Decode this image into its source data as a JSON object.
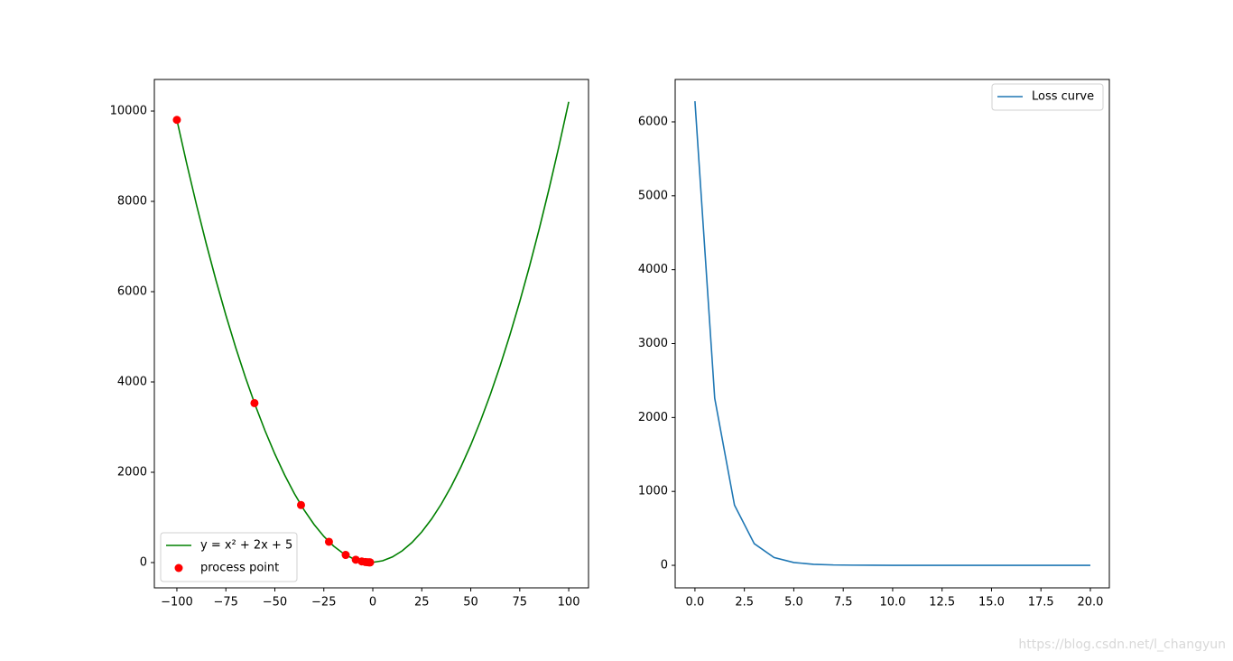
{
  "chart_data": [
    {
      "type": "line",
      "series": [
        {
          "name": "y = x² + 2x + 5",
          "type": "line",
          "color": "#008000",
          "x": [
            -100,
            -95,
            -90,
            -85,
            -80,
            -75,
            -70,
            -65,
            -60,
            -55,
            -50,
            -45,
            -40,
            -35,
            -30,
            -25,
            -20,
            -15,
            -10,
            -5,
            0,
            5,
            10,
            15,
            20,
            25,
            30,
            35,
            40,
            45,
            50,
            55,
            60,
            65,
            70,
            75,
            80,
            85,
            90,
            95,
            100
          ],
          "values": [
            9805,
            8840,
            7925,
            7060,
            6245,
            5480,
            4765,
            4100,
            3485,
            2920,
            2405,
            1940,
            1525,
            1160,
            845,
            580,
            365,
            200,
            85,
            20,
            5,
            40,
            125,
            260,
            445,
            680,
            965,
            1300,
            1685,
            2120,
            2605,
            3140,
            3725,
            4360,
            5045,
            5780,
            6565,
            7400,
            8285,
            9220,
            10205
          ]
        },
        {
          "name": "process point",
          "type": "scatter",
          "color": "#ff0000",
          "x": [
            -100,
            -60.4,
            -36.64,
            -22.38,
            -13.83,
            -8.7,
            -5.62,
            -3.77,
            -2.66,
            -2,
            -1.6,
            -1.36
          ],
          "values": [
            9805,
            3532,
            1274,
            461,
            169,
            63,
            25,
            12,
            7,
            5,
            4.4,
            4.1
          ]
        }
      ],
      "xlim": [
        -111.5,
        110.1
      ],
      "ylim": [
        -560,
        10700
      ],
      "xticks": [
        {
          "value": -100,
          "label": "−100"
        },
        {
          "value": -75,
          "label": "−75"
        },
        {
          "value": -50,
          "label": "−50"
        },
        {
          "value": -25,
          "label": "−25"
        },
        0,
        25,
        50,
        75,
        100
      ],
      "yticks": [
        0,
        2000,
        4000,
        6000,
        8000,
        10000
      ],
      "legend": "lower left"
    },
    {
      "type": "line",
      "series": [
        {
          "name": "Loss curve",
          "type": "line",
          "color": "#1f77b4",
          "x": [
            0,
            1,
            2,
            3,
            4,
            5,
            6,
            7,
            8,
            9,
            10,
            11,
            12,
            13,
            14,
            15,
            16,
            17,
            18,
            19,
            20
          ],
          "values": [
            6280,
            2260,
            814,
            293,
            105,
            38,
            14,
            5,
            2,
            1,
            0,
            0,
            0,
            0,
            0,
            0,
            0,
            0,
            0,
            0,
            0
          ]
        }
      ],
      "xlim": [
        -1,
        20.96
      ],
      "ylim": [
        -305,
        6574
      ],
      "xticks": [
        {
          "value": 0,
          "label": "0.0"
        },
        2.5,
        {
          "value": 5,
          "label": "5.0"
        },
        7.5,
        {
          "value": 10,
          "label": "10.0"
        },
        12.5,
        {
          "value": 15,
          "label": "15.0"
        },
        17.5,
        {
          "value": 20,
          "label": "20.0"
        }
      ],
      "yticks": [
        0,
        1000,
        2000,
        3000,
        4000,
        5000,
        6000
      ],
      "legend": "upper right"
    }
  ],
  "watermark": "https://blog.csdn.net/l_changyun"
}
